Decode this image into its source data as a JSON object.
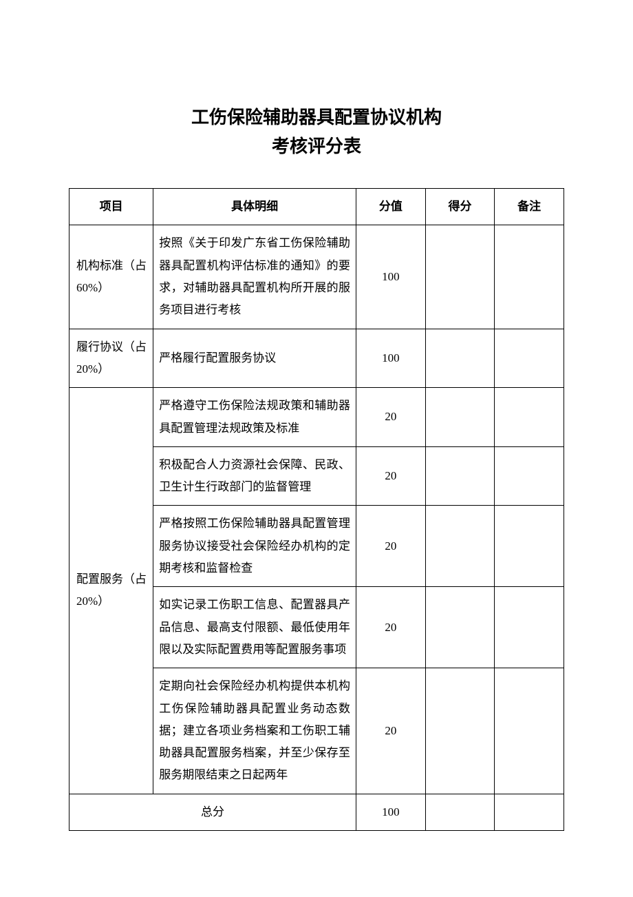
{
  "title": {
    "line1": "工伤保险辅助器具配置协议机构",
    "line2": "考核评分表"
  },
  "headers": {
    "project": "项目",
    "detail": "具体明细",
    "score": "分值",
    "got": "得分",
    "remark": "备注"
  },
  "sections": [
    {
      "project": "机构标准（占 60%）",
      "rows": [
        {
          "detail": "按照《关于印发广东省工伤保险辅助器具配置机构评估标准的通知》的要求，对辅助器具配置机构所开展的服务项目进行考核",
          "score": "100",
          "got": "",
          "remark": ""
        }
      ]
    },
    {
      "project": "履行协议（占 20%）",
      "rows": [
        {
          "detail": "严格履行配置服务协议",
          "score": "100",
          "got": "",
          "remark": ""
        }
      ]
    },
    {
      "project": "配置服务（占 20%）",
      "rows": [
        {
          "detail": "严格遵守工伤保险法规政策和辅助器具配置管理法规政策及标准",
          "score": "20",
          "got": "",
          "remark": ""
        },
        {
          "detail": "积极配合人力资源社会保障、民政、卫生计生行政部门的监督管理",
          "score": "20",
          "got": "",
          "remark": ""
        },
        {
          "detail": "严格按照工伤保险辅助器具配置管理服务协议接受社会保险经办机构的定期考核和监督检查",
          "score": "20",
          "got": "",
          "remark": ""
        },
        {
          "detail": "如实记录工伤职工信息、配置器具产品信息、最高支付限额、最低使用年限以及实际配置费用等配置服务事项",
          "score": "20",
          "got": "",
          "remark": ""
        },
        {
          "detail": "定期向社会保险经办机构提供本机构工伤保险辅助器具配置业务动态数据；建立各项业务档案和工伤职工辅助器具配置服务档案，并至少保存至服务期限结束之日起两年",
          "score": "20",
          "got": "",
          "remark": ""
        }
      ]
    }
  ],
  "total": {
    "label": "总分",
    "score": "100",
    "got": "",
    "remark": ""
  },
  "styling": {
    "background_color": "#ffffff",
    "text_color": "#000000",
    "border_color": "#000000",
    "title_fontsize": 26,
    "body_fontsize": 17,
    "font_family": "SimSun"
  }
}
